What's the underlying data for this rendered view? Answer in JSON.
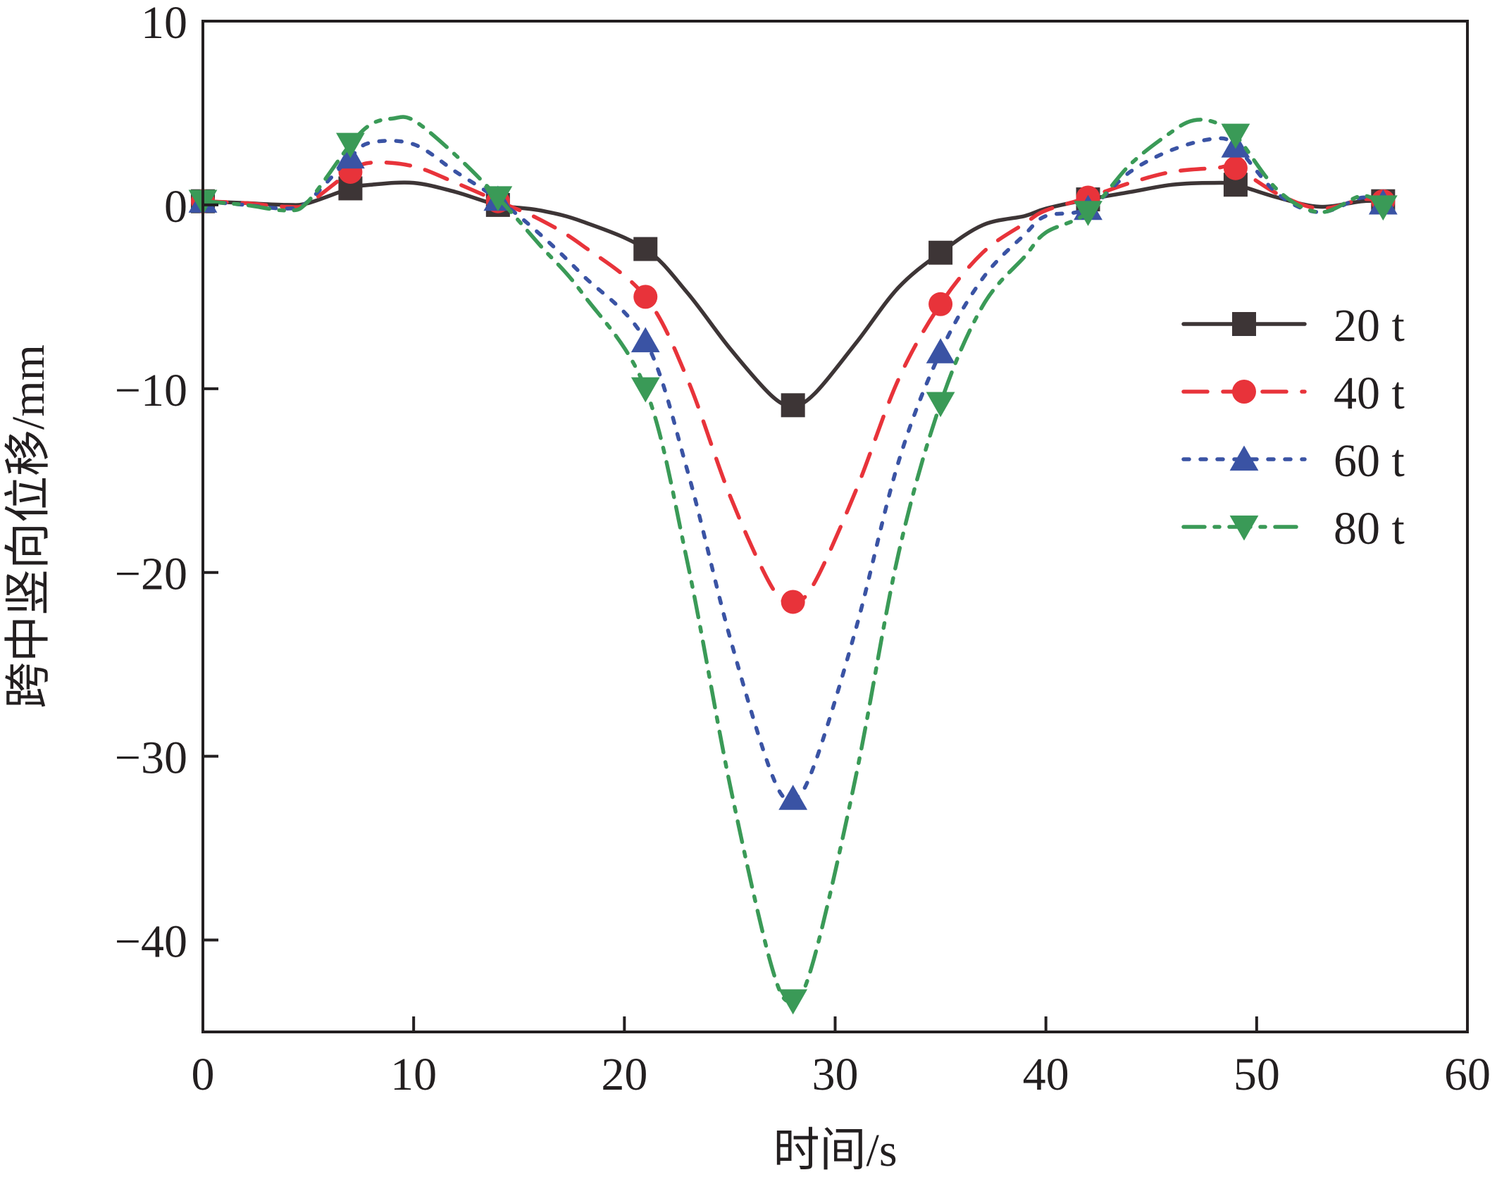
{
  "chart_data": {
    "type": "line",
    "title": "",
    "xlabel": "时间/s",
    "ylabel": "跨中竖向位移/mm",
    "xlim": [
      0,
      60
    ],
    "ylim": [
      -45,
      10
    ],
    "xticks": [
      0,
      10,
      20,
      30,
      40,
      50,
      60
    ],
    "yticks": [
      10,
      0,
      -10,
      -20,
      -30,
      -40
    ],
    "xtick_labels": [
      "0",
      "10",
      "20",
      "30",
      "40",
      "50",
      "60"
    ],
    "ytick_labels": [
      "10",
      "0",
      "−10",
      "−20",
      "−30",
      "−40"
    ],
    "grid": false,
    "legend_position": "right",
    "series": [
      {
        "name": "20 t",
        "color": "#3d3536",
        "line_style": "solid",
        "marker": "square",
        "x": [
          0,
          2,
          4,
          5,
          7,
          8,
          10,
          12,
          14,
          16,
          18,
          21,
          23,
          25,
          27,
          28,
          29,
          31,
          33,
          35,
          37,
          39,
          40,
          42,
          44,
          46,
          48,
          49,
          51,
          53,
          55,
          56
        ],
        "y": [
          0.2,
          0.1,
          0.0,
          0.1,
          0.9,
          1.1,
          1.2,
          0.7,
          0.0,
          -0.3,
          -0.9,
          -2.4,
          -4.8,
          -7.8,
          -10.4,
          -10.9,
          -10.3,
          -7.5,
          -4.5,
          -2.6,
          -1.1,
          -0.6,
          -0.2,
          0.3,
          0.7,
          1.1,
          1.2,
          1.1,
          0.4,
          -0.1,
          0.2,
          0.2
        ],
        "marker_x": [
          0,
          7,
          14,
          21,
          28,
          35,
          42,
          49,
          56
        ],
        "marker_y": [
          0.2,
          0.9,
          0.0,
          -2.4,
          -10.9,
          -2.6,
          0.3,
          1.1,
          0.2
        ]
      },
      {
        "name": "40 t",
        "color": "#e8333a",
        "line_style": "dashed",
        "marker": "circle",
        "x": [
          0,
          2,
          4,
          5,
          7,
          8,
          10,
          12,
          14,
          16,
          18,
          21,
          23,
          25,
          27,
          28,
          29,
          31,
          33,
          35,
          37,
          39,
          40,
          42,
          44,
          46,
          48,
          49,
          51,
          53,
          55,
          56
        ],
        "y": [
          0.2,
          0.1,
          -0.1,
          0.1,
          1.8,
          2.3,
          2.1,
          1.2,
          0.2,
          -0.8,
          -2.2,
          -5.0,
          -9.5,
          -15.8,
          -20.8,
          -21.6,
          -20.6,
          -15.5,
          -9.5,
          -5.4,
          -2.6,
          -1.0,
          -0.3,
          0.4,
          1.2,
          1.8,
          2.0,
          2.0,
          0.6,
          -0.2,
          0.3,
          0.2
        ],
        "marker_x": [
          0,
          7,
          14,
          21,
          28,
          35,
          42,
          49,
          56
        ],
        "marker_y": [
          0.2,
          1.8,
          0.2,
          -5.0,
          -21.6,
          -5.4,
          0.4,
          2.0,
          0.2
        ]
      },
      {
        "name": "60 t",
        "color": "#3a53a4",
        "line_style": "dotted",
        "marker": "triangle-up",
        "x": [
          0,
          2,
          4,
          5,
          7,
          8,
          10,
          12,
          14,
          16,
          18,
          21,
          23,
          25,
          27,
          28,
          29,
          31,
          33,
          35,
          37,
          39,
          40,
          42,
          44,
          46,
          48,
          49,
          51,
          53,
          55,
          56
        ],
        "y": [
          0.2,
          0.0,
          -0.2,
          0.2,
          2.6,
          3.4,
          3.3,
          1.8,
          0.3,
          -1.6,
          -3.8,
          -7.4,
          -14.5,
          -23.5,
          -31.0,
          -32.3,
          -30.5,
          -23.0,
          -14.0,
          -8.0,
          -4.0,
          -1.6,
          -0.6,
          -0.2,
          1.8,
          3.0,
          3.6,
          3.2,
          0.6,
          -0.4,
          0.4,
          0.1
        ],
        "marker_x": [
          0,
          7,
          14,
          21,
          28,
          35,
          42,
          49,
          56
        ],
        "marker_y": [
          0.2,
          2.6,
          0.3,
          -7.4,
          -32.3,
          -8.0,
          -0.2,
          3.2,
          0.1
        ]
      },
      {
        "name": "80 t",
        "color": "#3a9a57",
        "line_style": "dashdot",
        "marker": "triangle-down",
        "x": [
          0,
          2,
          4,
          5,
          7,
          8,
          9,
          10,
          12,
          14,
          16,
          18,
          21,
          23,
          25,
          27,
          28,
          29,
          31,
          33,
          35,
          37,
          39,
          40,
          42,
          44,
          46,
          47,
          48,
          49,
          51,
          53,
          55,
          56
        ],
        "y": [
          0.2,
          0.0,
          -0.3,
          0.2,
          3.3,
          4.4,
          4.7,
          4.6,
          2.7,
          0.4,
          -2.2,
          -4.8,
          -10.0,
          -19.5,
          -31.5,
          -41.5,
          -43.3,
          -41.0,
          -31.0,
          -19.0,
          -10.8,
          -5.5,
          -2.8,
          -1.5,
          -0.4,
          2.2,
          4.0,
          4.6,
          4.5,
          3.8,
          0.8,
          -0.4,
          0.5,
          -0.1
        ],
        "marker_x": [
          0,
          7,
          14,
          21,
          28,
          35,
          42,
          49,
          56
        ],
        "marker_y": [
          0.2,
          3.3,
          0.4,
          -10.0,
          -43.3,
          -10.8,
          -0.4,
          3.8,
          -0.1
        ]
      }
    ]
  }
}
